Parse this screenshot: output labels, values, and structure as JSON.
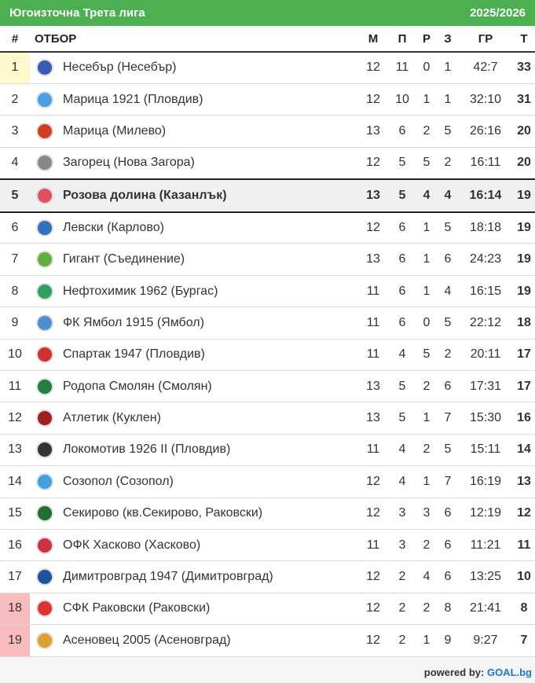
{
  "header": {
    "title": "Югоизточна Трета лига",
    "season": "2025/2026"
  },
  "columns": {
    "pos": "#",
    "team": "ОТБОР",
    "m": "М",
    "w": "П",
    "d": "Р",
    "l": "З",
    "gr": "ГР",
    "pts": "Т"
  },
  "colors": {
    "header": "#4caf50",
    "promotion": "#fff8cc",
    "relegation": "#f8bcbc",
    "highlight": "#f0f0f0"
  },
  "rows": [
    {
      "pos": "1",
      "team": "Несебър (Несебър)",
      "m": "12",
      "w": "11",
      "d": "0",
      "l": "1",
      "gr": "42:7",
      "pts": "33",
      "zone": "promotion",
      "logo": "#3a5bb0"
    },
    {
      "pos": "2",
      "team": "Марица 1921 (Пловдив)",
      "m": "12",
      "w": "10",
      "d": "1",
      "l": "1",
      "gr": "32:10",
      "pts": "31",
      "logo": "#4aa0e0"
    },
    {
      "pos": "3",
      "team": "Марица (Милево)",
      "m": "13",
      "w": "6",
      "d": "2",
      "l": "5",
      "gr": "26:16",
      "pts": "20",
      "logo": "#d04020"
    },
    {
      "pos": "4",
      "team": "Загорец (Нова Загора)",
      "m": "12",
      "w": "5",
      "d": "5",
      "l": "2",
      "gr": "16:11",
      "pts": "20",
      "logo": "#888888"
    },
    {
      "pos": "5",
      "team": "Розова долина (Казанлък)",
      "m": "13",
      "w": "5",
      "d": "4",
      "l": "4",
      "gr": "16:14",
      "pts": "19",
      "highlight": true,
      "logo": "#e05060"
    },
    {
      "pos": "6",
      "team": "Левски (Карлово)",
      "m": "12",
      "w": "6",
      "d": "1",
      "l": "5",
      "gr": "18:18",
      "pts": "19",
      "logo": "#3070c0"
    },
    {
      "pos": "7",
      "team": "Гигант (Съединение)",
      "m": "13",
      "w": "6",
      "d": "1",
      "l": "6",
      "gr": "24:23",
      "pts": "19",
      "logo": "#60b040"
    },
    {
      "pos": "8",
      "team": "Нефтохимик 1962 (Бургас)",
      "m": "11",
      "w": "6",
      "d": "1",
      "l": "4",
      "gr": "16:15",
      "pts": "19",
      "logo": "#30a060"
    },
    {
      "pos": "9",
      "team": "ФК Ямбол 1915 (Ямбол)",
      "m": "11",
      "w": "6",
      "d": "0",
      "l": "5",
      "gr": "22:12",
      "pts": "18",
      "logo": "#4a90d0"
    },
    {
      "pos": "10",
      "team": "Спартак 1947 (Пловдив)",
      "m": "11",
      "w": "4",
      "d": "5",
      "l": "2",
      "gr": "20:11",
      "pts": "17",
      "logo": "#d03030"
    },
    {
      "pos": "11",
      "team": "Родопа Смолян (Смолян)",
      "m": "13",
      "w": "5",
      "d": "2",
      "l": "6",
      "gr": "17:31",
      "pts": "17",
      "logo": "#208040"
    },
    {
      "pos": "12",
      "team": "Атлетик (Куклен)",
      "m": "13",
      "w": "5",
      "d": "1",
      "l": "7",
      "gr": "15:30",
      "pts": "16",
      "logo": "#a02020"
    },
    {
      "pos": "13",
      "team": "Локомотив 1926 II (Пловдив)",
      "m": "11",
      "w": "4",
      "d": "2",
      "l": "5",
      "gr": "15:11",
      "pts": "14",
      "logo": "#333333"
    },
    {
      "pos": "14",
      "team": "Созопол (Созопол)",
      "m": "12",
      "w": "4",
      "d": "1",
      "l": "7",
      "gr": "16:19",
      "pts": "13",
      "logo": "#40a0e0"
    },
    {
      "pos": "15",
      "team": "Секирово (кв.Секирово, Раковски)",
      "m": "12",
      "w": "3",
      "d": "3",
      "l": "6",
      "gr": "12:19",
      "pts": "12",
      "logo": "#207030"
    },
    {
      "pos": "16",
      "team": "ОФК Хасково (Хасково)",
      "m": "11",
      "w": "3",
      "d": "2",
      "l": "6",
      "gr": "11:21",
      "pts": "11",
      "logo": "#d03040"
    },
    {
      "pos": "17",
      "team": "Димитровград 1947 (Димитровград)",
      "m": "12",
      "w": "2",
      "d": "4",
      "l": "6",
      "gr": "13:25",
      "pts": "10",
      "logo": "#2050a0"
    },
    {
      "pos": "18",
      "team": "СФК Раковски (Раковски)",
      "m": "12",
      "w": "2",
      "d": "2",
      "l": "8",
      "gr": "21:41",
      "pts": "8",
      "zone": "relegation",
      "logo": "#e03030"
    },
    {
      "pos": "19",
      "team": "Асеновец 2005 (Асеновград)",
      "m": "12",
      "w": "2",
      "d": "1",
      "l": "9",
      "gr": "9:27",
      "pts": "7",
      "zone": "relegation",
      "logo": "#e0a030"
    }
  ],
  "footer": {
    "prefix": "powered by:",
    "brand": "GOAL.bg"
  }
}
